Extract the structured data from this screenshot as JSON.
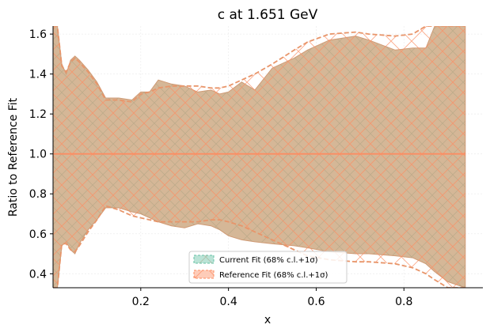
{
  "chart_data": {
    "type": "area",
    "title": "c at 1.651 GeV",
    "xlabel": "x",
    "ylabel": "Ratio to Reference Fit",
    "xlim": [
      0.0,
      0.98
    ],
    "ylim": [
      0.33,
      1.64
    ],
    "xticks": [
      0.2,
      0.4,
      0.6,
      0.8
    ],
    "yticks": [
      0.4,
      0.6,
      0.8,
      1.0,
      1.2,
      1.4,
      1.6
    ],
    "grid": true,
    "legend_position": "bottom-center",
    "reference_line": 1.0,
    "colors": {
      "current": "#66c2a5",
      "reference": "#fc8d62",
      "overlap_fill": "#d5b797",
      "overlap_edge": "#d09a74"
    },
    "series": [
      {
        "name": "Current Fit (68% c.l.+1σ)",
        "x": [
          0.0,
          0.01,
          0.02,
          0.03,
          0.04,
          0.05,
          0.06,
          0.08,
          0.1,
          0.12,
          0.15,
          0.18,
          0.2,
          0.22,
          0.24,
          0.27,
          0.3,
          0.33,
          0.36,
          0.38,
          0.4,
          0.43,
          0.46,
          0.5,
          0.55,
          0.58,
          0.63,
          0.69,
          0.72,
          0.78,
          0.82,
          0.85,
          0.87,
          0.9,
          0.94
        ],
        "upper": [
          1.64,
          1.64,
          1.45,
          1.4,
          1.47,
          1.49,
          1.47,
          1.42,
          1.36,
          1.28,
          1.28,
          1.27,
          1.31,
          1.31,
          1.37,
          1.35,
          1.34,
          1.31,
          1.32,
          1.3,
          1.31,
          1.36,
          1.32,
          1.43,
          1.48,
          1.52,
          1.57,
          1.59,
          1.57,
          1.52,
          1.53,
          1.53,
          1.64,
          1.64,
          1.64
        ],
        "lower": [
          0.33,
          0.33,
          0.54,
          0.56,
          0.52,
          0.5,
          0.55,
          0.62,
          0.67,
          0.73,
          0.73,
          0.71,
          0.7,
          0.68,
          0.66,
          0.64,
          0.63,
          0.65,
          0.64,
          0.62,
          0.59,
          0.57,
          0.56,
          0.55,
          0.54,
          0.53,
          0.51,
          0.5,
          0.5,
          0.49,
          0.48,
          0.45,
          0.41,
          0.36,
          0.33
        ]
      },
      {
        "name": "Reference Fit (68% c.l.+1σ)",
        "x": [
          0.0,
          0.01,
          0.02,
          0.03,
          0.04,
          0.05,
          0.06,
          0.08,
          0.1,
          0.12,
          0.15,
          0.18,
          0.2,
          0.22,
          0.24,
          0.27,
          0.3,
          0.33,
          0.36,
          0.38,
          0.4,
          0.43,
          0.46,
          0.5,
          0.55,
          0.58,
          0.63,
          0.69,
          0.72,
          0.78,
          0.82,
          0.85,
          0.87,
          0.9,
          0.94
        ],
        "upper": [
          1.64,
          1.64,
          1.44,
          1.41,
          1.46,
          1.48,
          1.46,
          1.41,
          1.35,
          1.27,
          1.27,
          1.26,
          1.3,
          1.31,
          1.33,
          1.34,
          1.34,
          1.34,
          1.33,
          1.33,
          1.34,
          1.37,
          1.4,
          1.45,
          1.52,
          1.56,
          1.6,
          1.61,
          1.6,
          1.59,
          1.6,
          1.64,
          1.64,
          1.64,
          1.64
        ],
        "lower": [
          0.33,
          0.33,
          0.55,
          0.55,
          0.52,
          0.51,
          0.54,
          0.61,
          0.67,
          0.74,
          0.72,
          0.69,
          0.68,
          0.67,
          0.66,
          0.66,
          0.66,
          0.66,
          0.67,
          0.67,
          0.66,
          0.64,
          0.61,
          0.57,
          0.52,
          0.49,
          0.47,
          0.46,
          0.46,
          0.45,
          0.43,
          0.4,
          0.37,
          0.33,
          0.33
        ],
        "central": 1.0
      }
    ]
  }
}
